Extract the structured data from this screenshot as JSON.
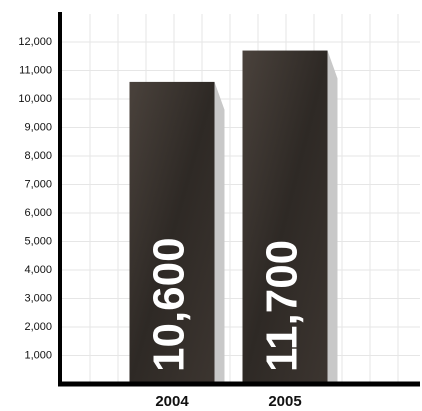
{
  "chart_data": {
    "type": "bar",
    "categories": [
      "2004",
      "2005"
    ],
    "values": [
      10600,
      11700
    ],
    "value_labels": [
      "10,600",
      "11,700"
    ],
    "color": "#3a3430",
    "ylim": [
      0,
      13000
    ],
    "yticks": [
      {
        "value": 1000,
        "label": "1,000"
      },
      {
        "value": 2000,
        "label": "2,000"
      },
      {
        "value": 3000,
        "label": "3,000"
      },
      {
        "value": 4000,
        "label": "4,000"
      },
      {
        "value": 5000,
        "label": "5,000"
      },
      {
        "value": 6000,
        "label": "6,000"
      },
      {
        "value": 7000,
        "label": "7,000"
      },
      {
        "value": 8000,
        "label": "8,000"
      },
      {
        "value": 9000,
        "label": "9,000"
      },
      {
        "value": 10000,
        "label": "10,000"
      },
      {
        "value": 11000,
        "label": "11,000"
      },
      {
        "value": 12000,
        "label": "12,000"
      }
    ],
    "grid": true
  }
}
